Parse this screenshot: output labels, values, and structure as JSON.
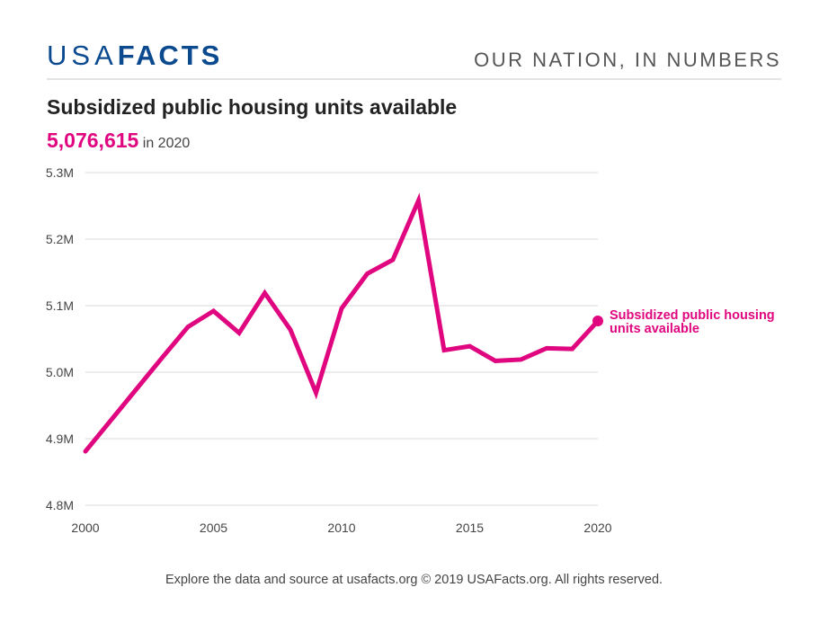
{
  "header": {
    "logo_light": "USA",
    "logo_bold": "FACTS",
    "tagline": "OUR NATION, IN NUMBERS"
  },
  "headline": {
    "value": "5,076,615",
    "suffix": "in 2020"
  },
  "footer": "Explore the data and source at usafacts.org © 2019 USAFacts.org. All rights reserved.",
  "colors": {
    "series": "#e0067f",
    "brand": "#0b4a8f",
    "grid": "#e6e6e6"
  },
  "chart_data": {
    "type": "line",
    "title": "Subsidized public housing units available",
    "xlabel": "",
    "ylabel": "",
    "xlim": [
      2000,
      2020
    ],
    "ylim": [
      4.8,
      5.3
    ],
    "y_unit": "millions",
    "grid": true,
    "x_ticks": [
      "2000",
      "2005",
      "2010",
      "2015",
      "2020"
    ],
    "y_ticks": [
      "5.3M",
      "5.2M",
      "5.1M",
      "5.0M",
      "4.9M",
      "4.8M"
    ],
    "y_tick_values": [
      5.3,
      5.2,
      5.1,
      5.0,
      4.9,
      4.8
    ],
    "series": [
      {
        "name": "Subsidized public housing units available",
        "x": [
          2000,
          2001,
          2002,
          2003,
          2004,
          2005,
          2006,
          2007,
          2008,
          2009,
          2010,
          2011,
          2012,
          2013,
          2014,
          2015,
          2016,
          2017,
          2018,
          2019,
          2020
        ],
        "values": [
          4.881,
          4.928,
          4.975,
          5.022,
          5.068,
          5.092,
          5.059,
          5.119,
          5.064,
          4.969,
          5.096,
          5.148,
          5.169,
          5.258,
          5.033,
          5.039,
          5.017,
          5.019,
          5.036,
          5.035,
          5.077
        ]
      }
    ],
    "end_label_lines": [
      "Subsidized public housing",
      "units available"
    ],
    "legend": "end-of-line label, right"
  }
}
